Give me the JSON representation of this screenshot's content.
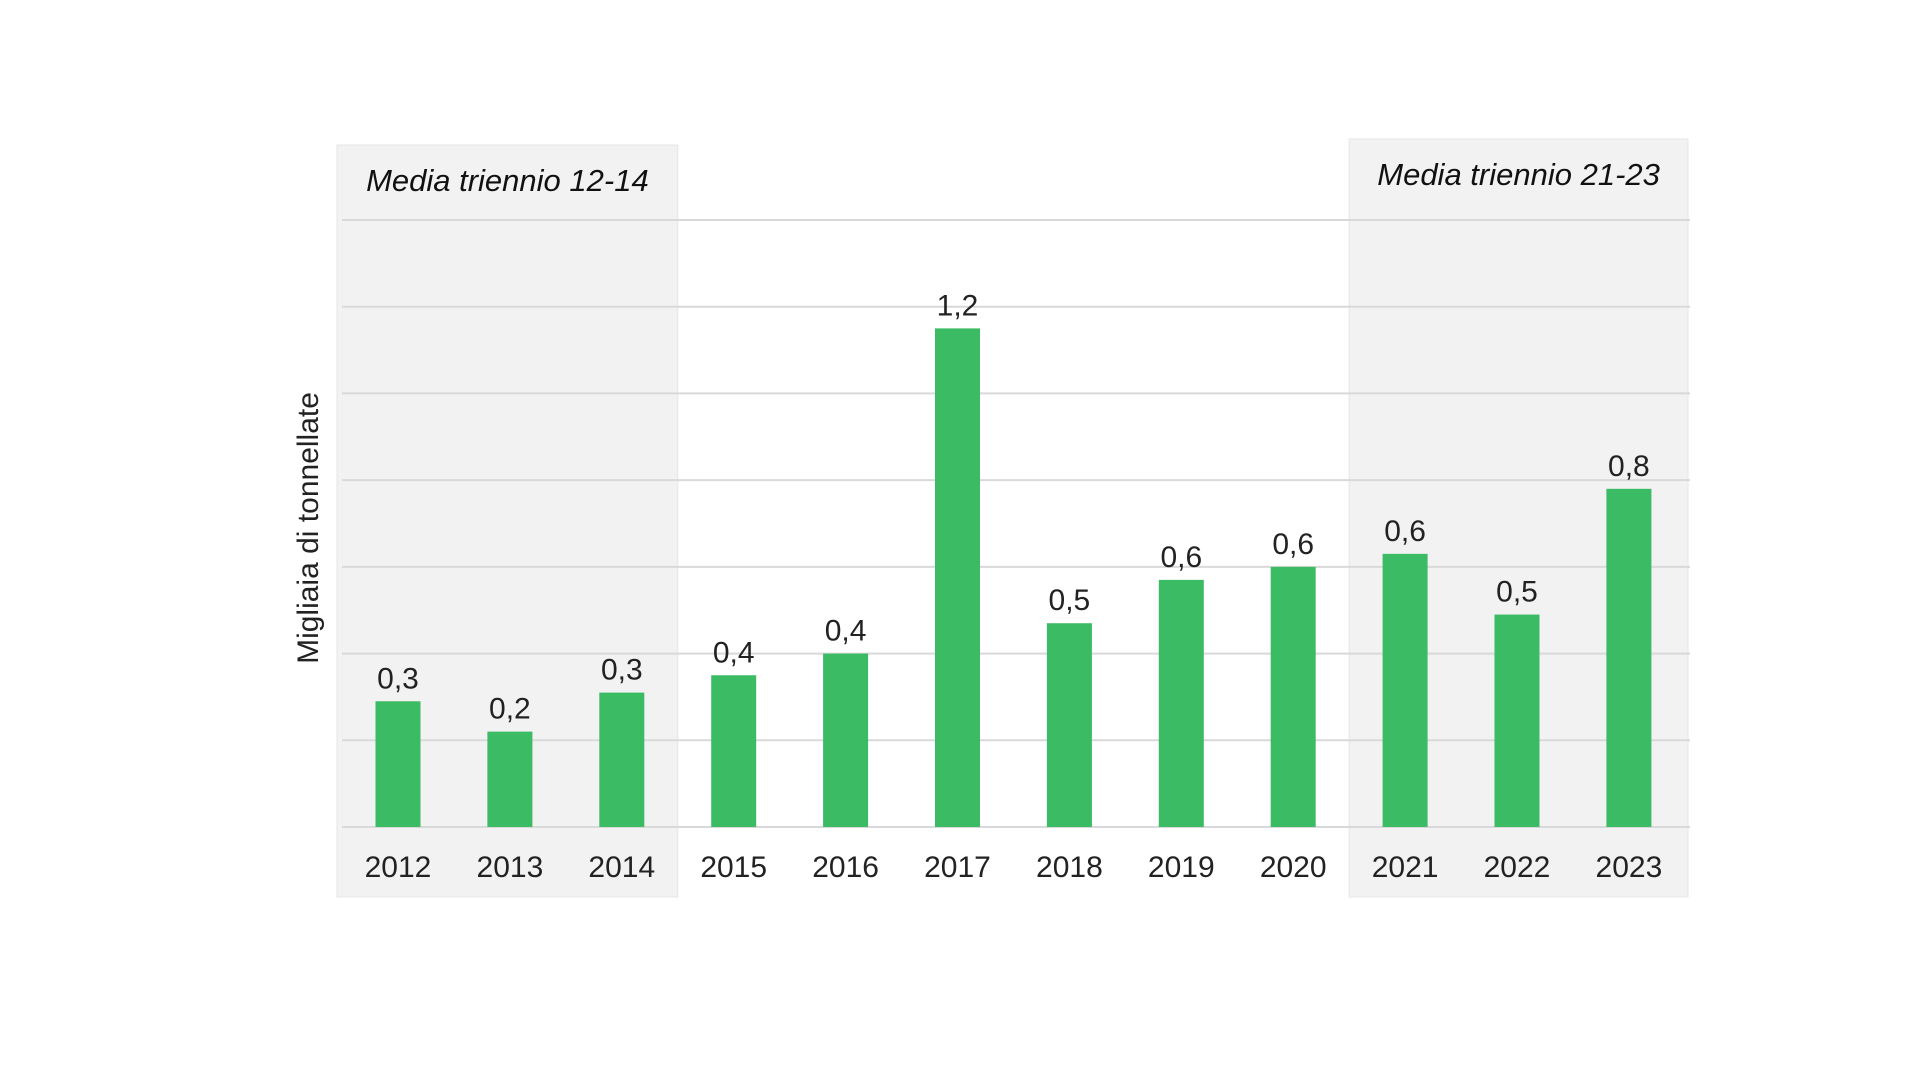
{
  "chart_data": {
    "type": "bar",
    "title": "",
    "xlabel": "",
    "ylabel": "Migliaia di tonnellate",
    "categories": [
      "2012",
      "2013",
      "2014",
      "2015",
      "2016",
      "2017",
      "2018",
      "2019",
      "2020",
      "2021",
      "2022",
      "2023"
    ],
    "values": [
      0.29,
      0.22,
      0.31,
      0.35,
      0.4,
      1.15,
      0.47,
      0.57,
      0.6,
      0.63,
      0.49,
      0.78
    ],
    "value_labels": [
      "0,3",
      "0,2",
      "0,3",
      "0,4",
      "0,4",
      "1,2",
      "0,5",
      "0,6",
      "0,6",
      "0,6",
      "0,5",
      "0,8"
    ],
    "ylim": [
      0,
      1.4
    ],
    "grid": true,
    "gridline_values": [
      0,
      0.2,
      0.4,
      0.6,
      0.8,
      1.0,
      1.2,
      1.4
    ],
    "highlight_bands": [
      {
        "label": "Media triennio 12-14",
        "from": "2012",
        "to": "2014"
      },
      {
        "label": "Media triennio 21-23",
        "from": "2021",
        "to": "2023"
      }
    ],
    "colors": {
      "bar": "#3BBB63",
      "band": "#F2F2F2",
      "grid": "#D9D9D9"
    }
  }
}
